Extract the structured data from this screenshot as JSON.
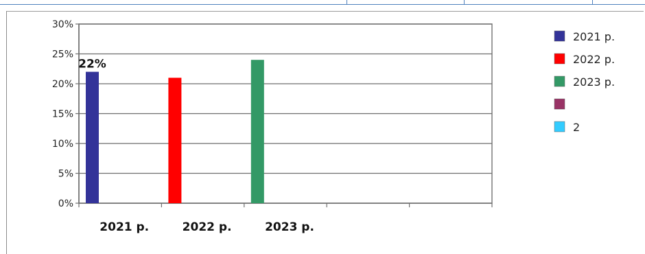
{
  "chart_data": {
    "type": "bar",
    "categories": [
      "2021 р.",
      "2022 р.",
      "2023 р.",
      "",
      ""
    ],
    "series": [
      {
        "name": "2021 р.",
        "color": "#333399",
        "values": [
          22,
          null,
          null,
          null,
          null
        ]
      },
      {
        "name": "2022 р.",
        "color": "#ff0000",
        "values": [
          null,
          21,
          null,
          null,
          null
        ]
      },
      {
        "name": "2023 р.",
        "color": "#339966",
        "values": [
          null,
          null,
          24,
          null,
          null
        ]
      },
      {
        "name": "",
        "color": "#993366",
        "values": [
          null,
          null,
          null,
          null,
          null
        ]
      },
      {
        "name": "2",
        "color": "#33ccff",
        "values": [
          null,
          null,
          null,
          null,
          null
        ]
      }
    ],
    "ylim": [
      0,
      30
    ],
    "yticks": [
      "0%",
      "5%",
      "10%",
      "15%",
      "20%",
      "25%",
      "30%"
    ],
    "data_labels": [
      {
        "series": 0,
        "category": 0,
        "text": "22%"
      }
    ],
    "grid": true,
    "legend_position": "right"
  }
}
